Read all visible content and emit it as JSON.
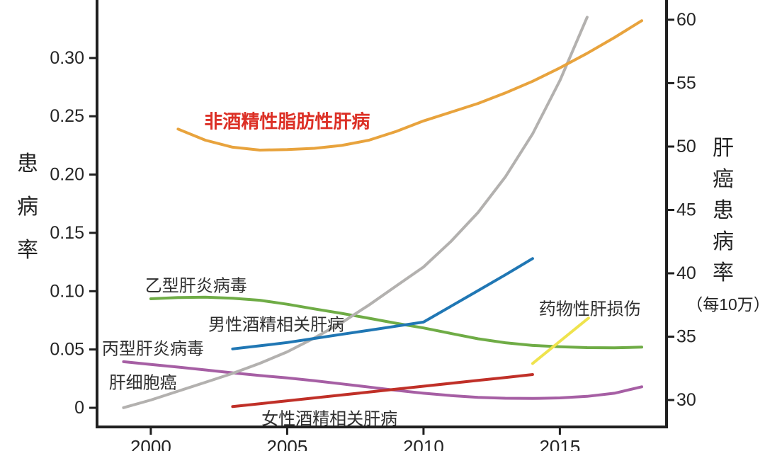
{
  "chart_data": {
    "type": "line",
    "title": "",
    "x_axis": {
      "tick_labels": [
        "2000",
        "2005",
        "2010",
        "2015"
      ],
      "tick_values": [
        2000,
        2005,
        2010,
        2015
      ],
      "range": [
        1998.03,
        2018.91
      ],
      "grid": false
    },
    "y_axis_left": {
      "label": "患病率",
      "tick_labels": [
        "0",
        "0.05",
        "0.10",
        "0.15",
        "0.20",
        "0.25",
        "0.30"
      ],
      "tick_values": [
        0,
        0.05,
        0.1,
        0.15,
        0.2,
        0.25,
        0.3
      ],
      "range": [
        -0.0164,
        0.3497
      ]
    },
    "y_axis_right": {
      "label": "肝癌患病率",
      "unit": "（每10万）",
      "tick_labels": [
        "30",
        "35",
        "40",
        "45",
        "50",
        "55",
        "60"
      ],
      "tick_values": [
        30,
        35,
        40,
        45,
        50,
        55,
        60
      ],
      "range": [
        27.88,
        61.56
      ]
    },
    "axis_color": "#1f1f1f",
    "series": [
      {
        "id": "hbv",
        "name": "乙型肝炎病毒",
        "axis": "left",
        "color": "#6FAC46",
        "points": [
          [
            2000,
            0.0935
          ],
          [
            2001,
            0.0945
          ],
          [
            2002,
            0.0948
          ],
          [
            2003,
            0.094
          ],
          [
            2004,
            0.0922
          ],
          [
            2005,
            0.0888
          ],
          [
            2006,
            0.0848
          ],
          [
            2007,
            0.081
          ],
          [
            2008,
            0.0768
          ],
          [
            2009,
            0.0725
          ],
          [
            2010,
            0.0685
          ],
          [
            2011,
            0.0638
          ],
          [
            2012,
            0.0592
          ],
          [
            2013,
            0.0558
          ],
          [
            2014,
            0.0535
          ],
          [
            2015,
            0.0524
          ],
          [
            2016,
            0.0516
          ],
          [
            2017,
            0.0514
          ],
          [
            2018,
            0.052
          ]
        ]
      },
      {
        "id": "hcv",
        "name": "丙型肝炎病毒",
        "axis": "left",
        "color": "#A65FA4",
        "points": [
          [
            1999,
            0.0395
          ],
          [
            2000,
            0.0372
          ],
          [
            2001,
            0.0349
          ],
          [
            2002,
            0.0325
          ],
          [
            2003,
            0.03
          ],
          [
            2004,
            0.0277
          ],
          [
            2005,
            0.0256
          ],
          [
            2006,
            0.0232
          ],
          [
            2007,
            0.0205
          ],
          [
            2008,
            0.0178
          ],
          [
            2009,
            0.015
          ],
          [
            2010,
            0.0125
          ],
          [
            2011,
            0.0105
          ],
          [
            2012,
            0.009
          ],
          [
            2013,
            0.0082
          ],
          [
            2014,
            0.008
          ],
          [
            2015,
            0.0085
          ],
          [
            2016,
            0.0098
          ],
          [
            2017,
            0.0125
          ],
          [
            2018,
            0.018
          ]
        ]
      },
      {
        "id": "hcc",
        "name": "肝细胞癌",
        "axis": "right",
        "color": "#B3B1AF",
        "points": [
          [
            1999,
            29.4
          ],
          [
            2000,
            30.0
          ],
          [
            2001,
            30.7
          ],
          [
            2002,
            31.4
          ],
          [
            2003,
            32.1
          ],
          [
            2004,
            32.9
          ],
          [
            2005,
            33.8
          ],
          [
            2006,
            34.9
          ],
          [
            2007,
            36.1
          ],
          [
            2008,
            37.5
          ],
          [
            2009,
            39.0
          ],
          [
            2010,
            40.5
          ],
          [
            2011,
            42.5
          ],
          [
            2012,
            44.8
          ],
          [
            2013,
            47.6
          ],
          [
            2014,
            51.0
          ],
          [
            2015,
            55.2
          ],
          [
            2016,
            60.2
          ]
        ]
      },
      {
        "id": "nafld",
        "name": "非酒精性脂肪性肝病",
        "axis": "left",
        "color": "#E8A33D",
        "points": [
          [
            2001,
            0.239
          ],
          [
            2002,
            0.2295
          ],
          [
            2003,
            0.2235
          ],
          [
            2004,
            0.221
          ],
          [
            2005,
            0.2215
          ],
          [
            2006,
            0.2225
          ],
          [
            2007,
            0.225
          ],
          [
            2008,
            0.2295
          ],
          [
            2009,
            0.237
          ],
          [
            2010,
            0.246
          ],
          [
            2011,
            0.2535
          ],
          [
            2012,
            0.261
          ],
          [
            2013,
            0.27
          ],
          [
            2014,
            0.28
          ],
          [
            2015,
            0.2915
          ],
          [
            2016,
            0.304
          ],
          [
            2017,
            0.3175
          ],
          [
            2018,
            0.332
          ]
        ]
      },
      {
        "id": "female-ald",
        "name": "女性酒精相关肝病",
        "axis": "left",
        "color": "#C03028",
        "points": [
          [
            2003,
            0.001
          ],
          [
            2004,
            0.0035
          ],
          [
            2005,
            0.006
          ],
          [
            2006,
            0.0085
          ],
          [
            2007,
            0.011
          ],
          [
            2008,
            0.0135
          ],
          [
            2009,
            0.016
          ],
          [
            2010,
            0.0185
          ],
          [
            2011,
            0.021
          ],
          [
            2012,
            0.0235
          ],
          [
            2013,
            0.026
          ],
          [
            2014,
            0.0285
          ]
        ]
      },
      {
        "id": "male-ald",
        "name": "男性酒精相关肝病",
        "axis": "left",
        "color": "#2077B4",
        "points": [
          [
            2003,
            0.0505
          ],
          [
            2004,
            0.0532
          ],
          [
            2005,
            0.056
          ],
          [
            2006,
            0.0595
          ],
          [
            2007,
            0.063
          ],
          [
            2008,
            0.0665
          ],
          [
            2009,
            0.07
          ],
          [
            2010,
            0.0735
          ],
          [
            2011,
            0.087
          ],
          [
            2012,
            0.1005
          ],
          [
            2013,
            0.114
          ],
          [
            2014,
            0.128
          ]
        ]
      },
      {
        "id": "dili",
        "name": "药物性肝损伤",
        "axis": "left",
        "color": "#EFE34D",
        "points": [
          [
            2014,
            0.038
          ],
          [
            2016.05,
            0.077
          ]
        ]
      }
    ],
    "annotations": [
      {
        "text": "非酒精性脂肪性肝病",
        "color": "#DC3026",
        "emphasis": true,
        "x": 2005.0,
        "y": 0.2465
      },
      {
        "text": "乙型肝炎病毒",
        "color": "#2F2F2F",
        "emphasis": false,
        "x": 2001.66,
        "y": 0.1063
      },
      {
        "text": "男性酒精相关肝病",
        "color": "#2F2F2F",
        "emphasis": false,
        "x": 2004.6,
        "y": 0.0729
      },
      {
        "text": "丙型肝炎病毒",
        "color": "#2F2F2F",
        "emphasis": false,
        "x": 2000.08,
        "y": 0.0522
      },
      {
        "text": "肝细胞癌",
        "color": "#2F2F2F",
        "emphasis": false,
        "x": 1999.71,
        "y": 0.0231
      },
      {
        "text": "女性酒精相关肝病",
        "color": "#2F2F2F",
        "emphasis": false,
        "x": 2006.55,
        "y": -0.0079
      },
      {
        "text": "药物性肝损伤",
        "color": "#2F2F2F",
        "emphasis": false,
        "x": 2016.1,
        "y": 0.0862
      }
    ]
  }
}
